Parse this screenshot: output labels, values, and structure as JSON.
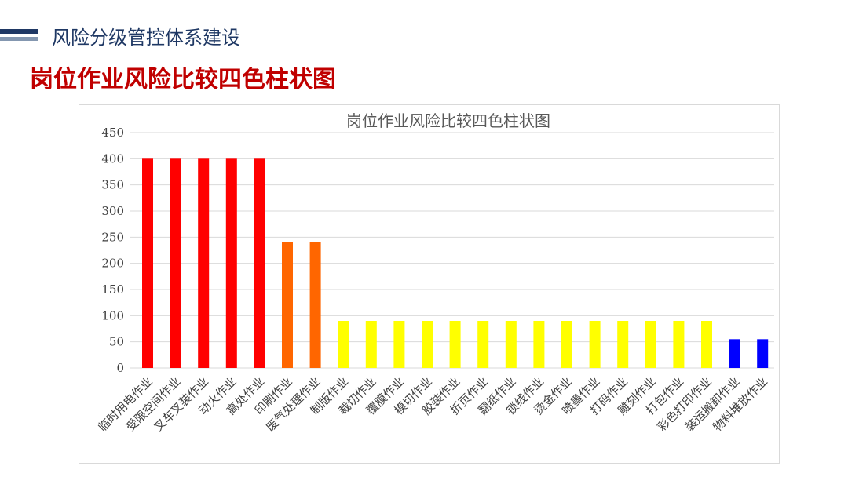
{
  "header": {
    "title": "风险分级管控体系建设"
  },
  "main_title": "岗位作业风险比较四色柱状图",
  "chart_data": {
    "type": "bar",
    "title": "岗位作业风险比较四色柱状图",
    "xlabel": "",
    "ylabel": "",
    "ylim": [
      0,
      450
    ],
    "yticks": [
      0,
      50,
      100,
      150,
      200,
      250,
      300,
      350,
      400,
      450
    ],
    "grid": true,
    "legend": "none",
    "categories": [
      "临时用电作业",
      "受限空间作业",
      "叉车叉装作业",
      "动火作业",
      "高处作业",
      "印刷作业",
      "废气处理作业",
      "制版作业",
      "裁切作业",
      "覆膜作业",
      "模切作业",
      "胶装作业",
      "折页作业",
      "翻纸作业",
      "锁线作业",
      "烫金作业",
      "喷墨作业",
      "打码作业",
      "雕刻作业",
      "打包作业",
      "彩色打印作业",
      "装运搬卸作业",
      "物料堆放作业"
    ],
    "values": [
      400,
      400,
      400,
      400,
      400,
      240,
      240,
      90,
      90,
      90,
      90,
      90,
      90,
      90,
      90,
      90,
      90,
      90,
      90,
      90,
      90,
      55,
      55
    ],
    "colors": [
      "#ff0000",
      "#ff0000",
      "#ff0000",
      "#ff0000",
      "#ff0000",
      "#ff6600",
      "#ff6600",
      "#ffff00",
      "#ffff00",
      "#ffff00",
      "#ffff00",
      "#ffff00",
      "#ffff00",
      "#ffff00",
      "#ffff00",
      "#ffff00",
      "#ffff00",
      "#ffff00",
      "#ffff00",
      "#ffff00",
      "#ffff00",
      "#0000ff",
      "#0000ff"
    ]
  }
}
